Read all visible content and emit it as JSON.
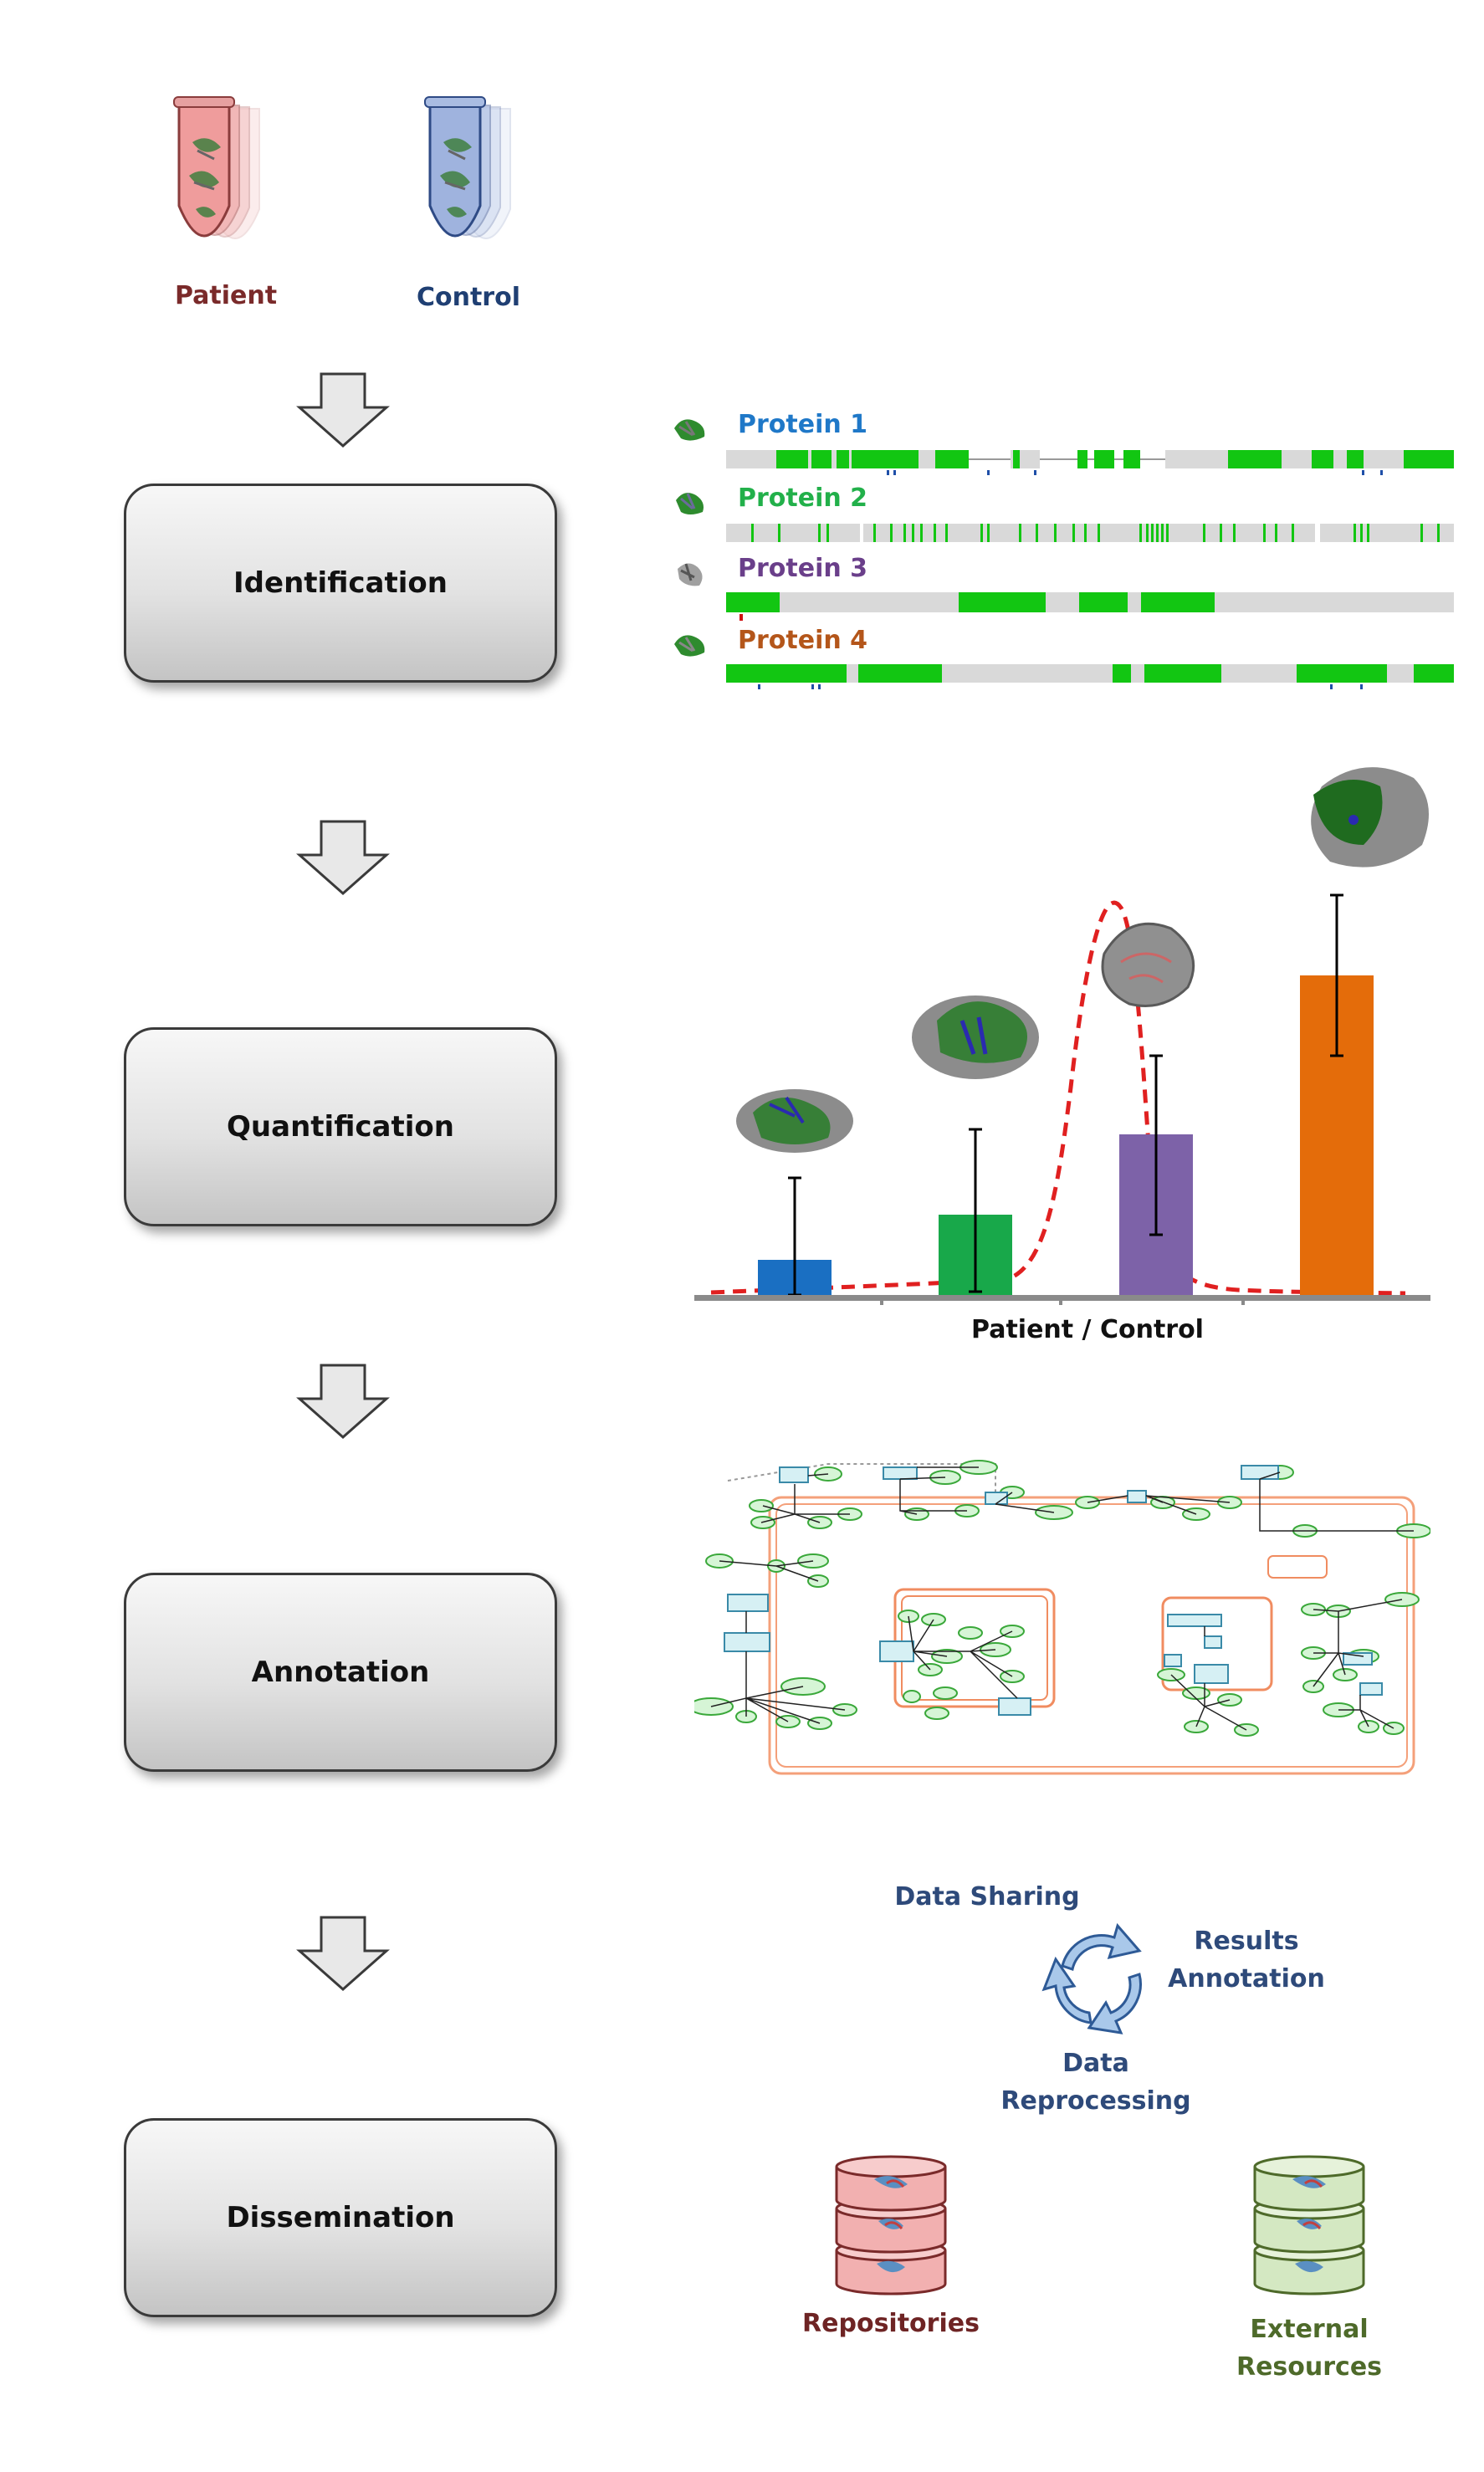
{
  "samples": {
    "patient_label": "Patient",
    "control_label": "Control",
    "patient_color": "#7a2a2a",
    "control_color": "#1f3f73"
  },
  "steps": [
    {
      "label": "Identification"
    },
    {
      "label": "Quantification"
    },
    {
      "label": "Annotation"
    },
    {
      "label": "Dissemination"
    }
  ],
  "proteins": [
    {
      "name": "Protein 1",
      "color": "#1f78c8"
    },
    {
      "name": "Protein 2",
      "color": "#22b04a"
    },
    {
      "name": "Protein 3",
      "color": "#6a3f8a"
    },
    {
      "name": "Protein 4",
      "color": "#b4561a"
    }
  ],
  "coverage_colors": {
    "covered": "#12c612",
    "uncovered": "#d9d9d9"
  },
  "quantification": {
    "xlabel": "Patient / Control",
    "bar_colors": [
      "#1a6fc2",
      "#18a84a",
      "#7d62a8",
      "#e46c0a"
    ]
  },
  "dissemination": {
    "cycle": {
      "top": "Data Sharing",
      "right_line1": "Results",
      "right_line2": "Annotation",
      "bottom_line1": "Data",
      "bottom_line2": "Reprocessing"
    },
    "repositories_label": "Repositories",
    "external_line1": "External",
    "external_line2": "Resources",
    "repositories_color": "#6e2424",
    "external_color": "#4e6a2a",
    "cycle_text_color": "#2e4a7a"
  }
}
